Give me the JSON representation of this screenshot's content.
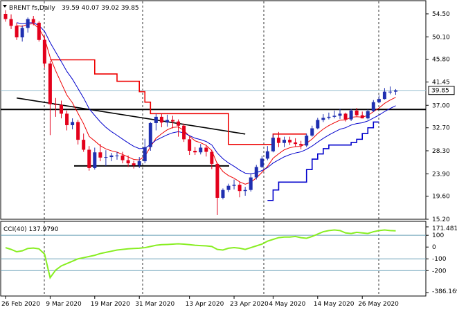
{
  "header": {
    "symbol_line": "BRENT fs,Daily",
    "ohlc": "39.59 40.07 39.02 39.85"
  },
  "price_axis": {
    "ticks": [
      "54.50",
      "50.10",
      "45.80",
      "41.45",
      "37.00",
      "32.70",
      "28.30",
      "23.90",
      "19.60",
      "15.20"
    ],
    "current_price_label": "39.85"
  },
  "cci_panel": {
    "title": "CCI(40) 137.9790",
    "ticks": [
      "171.4811",
      "100",
      "0",
      "-100",
      "-200",
      "-386.169"
    ]
  },
  "time_axis": {
    "labels": [
      "26 Feb 2020",
      "9 Mar 2020",
      "19 Mar 2020",
      "31 Mar 2020",
      "13 Apr 2020",
      "23 Apr 2020",
      "4 May 2020",
      "14 May 2020",
      "26 May 2020"
    ]
  },
  "colors": {
    "bull": "#1f2fb0",
    "bear": "#e3001b",
    "line_red": "#ee0000",
    "line_blue": "#0000cc",
    "trend": "#000000",
    "cci_line": "#88ee22",
    "cci_level": "#6aa0b8",
    "current_price": "#9fc3d4"
  },
  "chart_data": [
    {
      "type": "candlestick",
      "title": "BRENT fs,Daily",
      "ylim": [
        15.2,
        57.0
      ],
      "x": [
        "26 Feb",
        "27 Feb",
        "28 Feb",
        "2 Mar",
        "3 Mar",
        "4 Mar",
        "5 Mar",
        "6 Mar",
        "9 Mar",
        "10 Mar",
        "11 Mar",
        "12 Mar",
        "13 Mar",
        "16 Mar",
        "17 Mar",
        "18 Mar",
        "19 Mar",
        "20 Mar",
        "23 Mar",
        "24 Mar",
        "25 Mar",
        "26 Mar",
        "27 Mar",
        "30 Mar",
        "31 Mar",
        "1 Apr",
        "2 Apr",
        "3 Apr",
        "6 Apr",
        "7 Apr",
        "8 Apr",
        "9 Apr",
        "13 Apr",
        "14 Apr",
        "15 Apr",
        "16 Apr",
        "17 Apr",
        "20 Apr",
        "21 Apr",
        "22 Apr",
        "23 Apr",
        "24 Apr",
        "27 Apr",
        "28 Apr",
        "29 Apr",
        "30 Apr",
        "1 May",
        "4 May",
        "5 May",
        "6 May",
        "7 May",
        "8 May",
        "11 May",
        "12 May",
        "13 May",
        "14 May",
        "15 May",
        "18 May",
        "19 May",
        "20 May",
        "21 May",
        "22 May",
        "25 May",
        "26 May",
        "27 May",
        "28 May",
        "29 May",
        "1 Jun",
        "2 Jun",
        "3 Jun",
        "4 Jun"
      ],
      "open": [
        54.5,
        53.5,
        52.2,
        50.0,
        51.8,
        53.5,
        52.8,
        49.5,
        45.0,
        37.2,
        37.1,
        35.4,
        33.2,
        33.8,
        30.4,
        28.5,
        25.0,
        28.0,
        27.0,
        27.1,
        27.4,
        27.4,
        26.5,
        25.9,
        25.5,
        26.3,
        29.0,
        33.6,
        34.8,
        33.7,
        34.2,
        33.9,
        33.1,
        30.5,
        28.3,
        28.0,
        28.9,
        28.1,
        25.8,
        19.3,
        20.8,
        21.6,
        21.8,
        20.6,
        20.8,
        23.2,
        25.2,
        26.8,
        28.2,
        30.8,
        29.8,
        30.4,
        29.9,
        29.6,
        29.3,
        31.2,
        32.6,
        34.2,
        34.6,
        34.8,
        35.0,
        35.4,
        34.3,
        36.0,
        35.1,
        34.5,
        35.9,
        37.6,
        38.2,
        39.6,
        39.6
      ],
      "high": [
        55.2,
        54.4,
        52.8,
        52.3,
        53.8,
        54.1,
        53.1,
        50.2,
        45.5,
        38.4,
        37.9,
        36.0,
        34.5,
        34.2,
        31.6,
        29.2,
        28.9,
        29.6,
        28.4,
        27.9,
        28.1,
        28.1,
        27.4,
        26.4,
        27.1,
        30.6,
        33.8,
        35.4,
        35.5,
        35.2,
        35.0,
        34.3,
        33.5,
        31.0,
        29.0,
        29.6,
        29.4,
        28.5,
        26.0,
        21.1,
        22.0,
        22.8,
        22.4,
        21.4,
        24.0,
        25.6,
        27.3,
        29.2,
        31.4,
        31.9,
        31.0,
        31.0,
        30.7,
        30.2,
        31.6,
        33.1,
        34.6,
        35.3,
        35.6,
        36.0,
        36.3,
        35.6,
        36.3,
        36.5,
        35.8,
        36.2,
        38.0,
        38.9,
        40.3,
        40.6,
        40.1
      ],
      "low": [
        53.0,
        51.6,
        49.5,
        49.2,
        50.9,
        52.3,
        49.2,
        44.2,
        31.3,
        34.8,
        34.5,
        32.2,
        32.4,
        29.5,
        28.1,
        24.5,
        24.7,
        26.3,
        25.4,
        26.3,
        26.6,
        25.9,
        25.2,
        24.9,
        25.0,
        25.9,
        28.3,
        32.2,
        32.8,
        32.9,
        32.6,
        31.0,
        30.0,
        27.5,
        27.5,
        27.6,
        27.2,
        24.8,
        16.0,
        19.0,
        20.4,
        20.9,
        19.4,
        19.7,
        20.5,
        22.8,
        25.0,
        26.5,
        28.0,
        29.0,
        29.0,
        29.4,
        29.1,
        28.6,
        29.0,
        31.0,
        32.4,
        33.8,
        34.3,
        34.5,
        34.4,
        33.9,
        34.0,
        34.9,
        34.5,
        34.3,
        35.7,
        37.4,
        38.1,
        39.1,
        39.0
      ],
      "close": [
        53.5,
        52.2,
        50.0,
        51.8,
        53.5,
        52.8,
        49.5,
        45.0,
        37.2,
        37.1,
        35.4,
        33.2,
        33.8,
        30.4,
        28.5,
        25.0,
        28.0,
        27.0,
        27.1,
        27.4,
        27.4,
        26.5,
        25.9,
        25.5,
        26.3,
        29.0,
        33.6,
        34.8,
        33.7,
        34.2,
        33.9,
        33.1,
        30.5,
        28.3,
        28.0,
        28.9,
        28.1,
        25.8,
        19.3,
        20.8,
        21.6,
        21.8,
        20.6,
        20.8,
        23.2,
        25.2,
        26.8,
        28.2,
        30.8,
        29.8,
        30.4,
        29.9,
        29.6,
        29.3,
        31.2,
        32.6,
        34.2,
        34.6,
        34.8,
        35.0,
        35.4,
        34.3,
        36.0,
        35.1,
        34.5,
        35.9,
        37.6,
        38.2,
        39.6,
        39.6,
        39.85
      ],
      "overlays": [
        {
          "name": "red-step",
          "values": [
            null,
            null,
            null,
            null,
            null,
            null,
            null,
            null,
            45.7,
            45.7,
            45.7,
            45.7,
            45.7,
            45.7,
            45.7,
            45.7,
            43.0,
            43.0,
            43.0,
            43.0,
            41.6,
            41.6,
            41.6,
            41.6,
            39.6,
            37.6,
            35.4,
            35.4,
            35.4,
            35.4,
            35.4,
            35.4,
            35.4,
            35.4,
            35.4,
            35.4,
            35.4,
            35.4,
            35.4,
            35.4,
            29.5,
            29.5,
            29.5,
            29.5,
            29.5,
            29.5,
            29.5,
            29.5,
            31.5,
            31.5,
            31.5,
            31.5,
            31.5,
            31.5,
            31.5,
            null,
            null,
            null,
            null,
            null,
            null,
            null,
            null,
            null,
            null,
            null,
            null,
            null,
            null,
            null,
            null
          ]
        },
        {
          "name": "blue-step",
          "values": [
            null,
            null,
            null,
            null,
            null,
            null,
            null,
            null,
            null,
            null,
            null,
            null,
            null,
            null,
            null,
            null,
            null,
            null,
            null,
            null,
            null,
            null,
            null,
            null,
            null,
            null,
            null,
            null,
            null,
            null,
            null,
            null,
            null,
            null,
            null,
            null,
            null,
            null,
            null,
            null,
            null,
            null,
            null,
            null,
            null,
            null,
            null,
            18.8,
            20.8,
            22.3,
            22.3,
            22.3,
            22.3,
            22.3,
            24.7,
            26.7,
            27.7,
            28.7,
            29.4,
            29.4,
            29.4,
            29.4,
            29.9,
            30.5,
            31.6,
            32.7,
            33.8,
            33.8,
            null,
            null,
            null
          ]
        }
      ],
      "hlines": [
        36.2,
        25.4
      ],
      "trendline": [
        [
          2,
          38.4
        ],
        [
          43,
          31.5
        ]
      ]
    },
    {
      "type": "line",
      "title": "CCI(40) 137.9790",
      "ylim": [
        -386.169,
        171.4811
      ],
      "series": [
        {
          "name": "CCI(40)",
          "values": [
            -5,
            -20,
            -40,
            -32,
            -12,
            -8,
            -15,
            -60,
            -260,
            -195,
            -160,
            -140,
            -120,
            -100,
            -90,
            -80,
            -70,
            -55,
            -45,
            -35,
            -25,
            -20,
            -15,
            -12,
            -10,
            -5,
            5,
            15,
            20,
            22,
            25,
            28,
            25,
            20,
            15,
            12,
            10,
            5,
            -20,
            -25,
            -10,
            -5,
            -10,
            -20,
            -5,
            10,
            25,
            50,
            65,
            80,
            85,
            85,
            90,
            80,
            75,
            90,
            110,
            130,
            140,
            145,
            140,
            120,
            115,
            125,
            120,
            115,
            130,
            140,
            145,
            140,
            137.979
          ]
        }
      ],
      "levels": [
        100,
        -100,
        -200
      ]
    }
  ]
}
